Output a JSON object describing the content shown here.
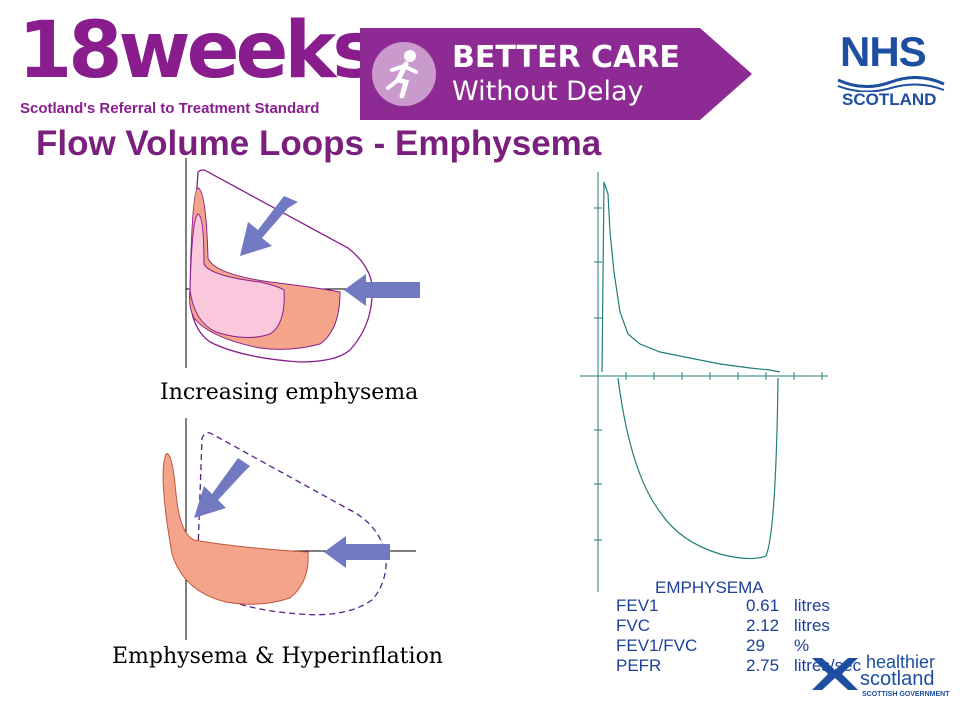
{
  "header": {
    "logo_big": "18weeks",
    "logo_sub": "Scotland's Referral to Treatment Standard",
    "banner_line1": "BETTER CARE",
    "banner_line2": "Without Delay",
    "nhs_top": "NHS",
    "nhs_bottom": "SCOTLAND"
  },
  "slide": {
    "title": "Flow Volume Loops - Emphysema",
    "caption_top": "Increasing emphysema",
    "caption_bottom": "Emphysema & Hyperinflation"
  },
  "spirometry": {
    "label": "EMPHYSEMA",
    "rows": [
      {
        "name": "FEV1",
        "value": "0.61",
        "unit": "litres"
      },
      {
        "name": "FVC",
        "value": "2.12",
        "unit": "litres"
      },
      {
        "name": "FEV1/FVC",
        "value": "29",
        "unit": "%"
      },
      {
        "name": "PEFR",
        "value": "2.75",
        "unit": "litres/sec"
      }
    ]
  },
  "footer": {
    "hs_line1": "healthier",
    "hs_line2": "scotland",
    "hs_line3": "SCOTTISH GOVERNMENT"
  },
  "colors": {
    "brand_purple": "#8e2a93",
    "nhs_blue": "#1d4ea0",
    "loop_salmon": "#f4a48a",
    "loop_pink": "#f9c8dc",
    "arrow_blue": "#7079c1",
    "trace_teal": "#1f7e7a"
  }
}
